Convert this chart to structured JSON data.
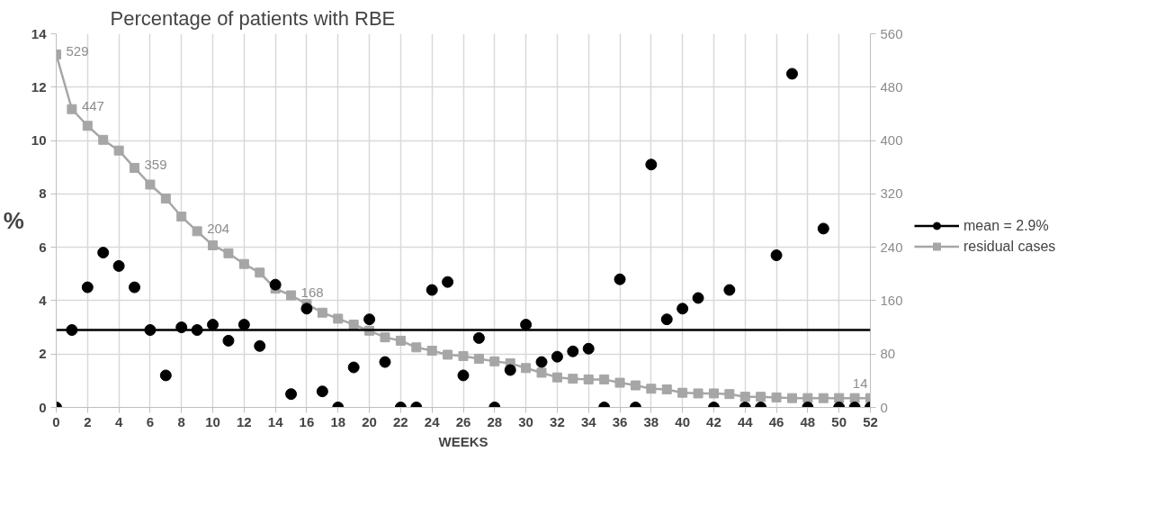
{
  "chart_data": {
    "type": "scatter",
    "title": "Percentage of patients with RBE",
    "xlabel": "WEEKS",
    "ylabel": "%",
    "x": [
      0,
      1,
      2,
      3,
      4,
      5,
      6,
      7,
      8,
      9,
      10,
      11,
      12,
      13,
      14,
      15,
      16,
      17,
      18,
      19,
      20,
      21,
      22,
      23,
      24,
      25,
      26,
      27,
      28,
      29,
      30,
      31,
      32,
      33,
      34,
      35,
      36,
      37,
      38,
      39,
      40,
      41,
      42,
      43,
      44,
      45,
      46,
      47,
      48,
      49,
      50,
      51,
      52
    ],
    "series": [
      {
        "name": "mean = 2.9%",
        "marker": "circle",
        "color": "#000000",
        "values": [
          0,
          2.9,
          4.5,
          5.8,
          5.3,
          4.5,
          2.9,
          1.2,
          3.0,
          2.9,
          3.1,
          2.5,
          3.1,
          2.3,
          4.6,
          0.5,
          3.7,
          0.6,
          0,
          1.5,
          3.3,
          1.7,
          0,
          0,
          4.4,
          4.7,
          1.2,
          2.6,
          0,
          1.4,
          3.1,
          1.7,
          1.9,
          2.1,
          2.2,
          0,
          4.8,
          0,
          9.1,
          3.3,
          3.7,
          4.1,
          0,
          4.4,
          0,
          0,
          5.7,
          12.5,
          0,
          6.7,
          0,
          0,
          0
        ]
      },
      {
        "name": "residual cases",
        "type": "line",
        "marker": "square",
        "axis": "y2",
        "color": "#a6a6a6",
        "values": [
          529,
          447,
          422,
          401,
          385,
          359,
          334,
          313,
          286,
          264,
          243,
          231,
          215,
          202,
          178,
          168,
          155,
          142,
          133,
          124,
          115,
          105,
          100,
          90,
          85,
          79,
          77,
          73,
          69,
          66,
          59,
          52,
          45,
          43,
          42,
          42,
          37,
          33,
          28,
          27,
          22,
          21,
          21,
          20,
          16,
          16,
          15,
          14,
          14,
          14,
          14,
          14,
          14
        ],
        "value_labels": [
          "529",
          "447",
          null,
          null,
          null,
          "359",
          null,
          null,
          null,
          null,
          null,
          null,
          null,
          null,
          null,
          "168",
          null,
          null,
          null,
          null,
          null,
          null,
          null,
          null,
          null,
          null,
          null,
          null,
          null,
          null,
          null,
          null,
          null,
          null,
          null,
          null,
          null,
          null,
          null,
          null,
          null,
          null,
          null,
          null,
          null,
          null,
          null,
          null,
          null,
          null,
          null,
          null,
          "14"
        ]
      }
    ],
    "annotations": [
      {
        "text": "204",
        "x": 9,
        "y": 6.6
      }
    ],
    "ref_lines": [
      {
        "axis": "y",
        "value": 2.9,
        "color": "#000000"
      }
    ],
    "xlim": [
      0,
      52
    ],
    "xticks": [
      0,
      2,
      4,
      6,
      8,
      10,
      12,
      14,
      16,
      18,
      20,
      22,
      24,
      26,
      28,
      30,
      32,
      34,
      36,
      38,
      40,
      42,
      44,
      46,
      48,
      50,
      52
    ],
    "ylim": [
      0,
      14
    ],
    "yticks": [
      0,
      2,
      4,
      6,
      8,
      10,
      12,
      14
    ],
    "y2lim": [
      0,
      560
    ],
    "y2ticks": [
      0,
      80,
      160,
      240,
      320,
      400,
      480,
      560
    ],
    "grid": true,
    "legend": "right",
    "line_style": "solid"
  }
}
